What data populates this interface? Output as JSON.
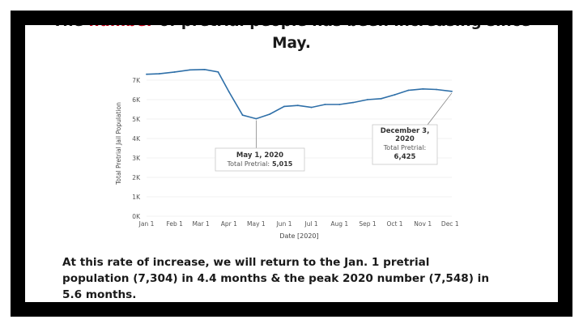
{
  "slide": {
    "title_part1": "The ",
    "title_highlight": "number",
    "title_part2": " of pretrial people has been increasing since",
    "title_line2": "May.",
    "caption_lines": [
      "At this rate of increase, we will return to the Jan. 1 pretrial",
      "population (7,304) in 4.4 months & the peak 2020 number (7,548) in",
      "5.6 months."
    ]
  },
  "colors": {
    "line": "#2e6fa8",
    "highlight": "#d0021b",
    "text": "#1a1a1a",
    "axis_text": "#555555",
    "grid": "#e6e6e6",
    "tooltip_border": "#c8c8c8"
  },
  "chart_data": {
    "type": "line",
    "xlabel": "Date [2020]",
    "ylabel": "Total Pretrial Jail Population",
    "ylim": [
      0,
      7500
    ],
    "yticks": [
      0,
      1000,
      2000,
      3000,
      4000,
      5000,
      6000,
      7000
    ],
    "ytick_labels": [
      "0K",
      "1K",
      "2K",
      "3K",
      "4K",
      "5K",
      "6K",
      "7K"
    ],
    "x_tick_dates": [
      "2020-01-01",
      "2020-02-01",
      "2020-03-01",
      "2020-04-01",
      "2020-05-01",
      "2020-06-01",
      "2020-07-01",
      "2020-08-01",
      "2020-09-01",
      "2020-10-01",
      "2020-11-01",
      "2020-12-01"
    ],
    "x_tick_labels": [
      "Jan 1",
      "Feb 1",
      "Mar 1",
      "Apr 1",
      "May 1",
      "Jun 1",
      "Jul 1",
      "Aug 1",
      "Sep 1",
      "Oct 1",
      "Nov 1",
      "Dec 1"
    ],
    "x_range": [
      "2020-01-01",
      "2020-12-03"
    ],
    "grid": true,
    "series": [
      {
        "points": [
          [
            "2020-01-01",
            7304
          ],
          [
            "2020-01-15",
            7330
          ],
          [
            "2020-02-01",
            7420
          ],
          [
            "2020-02-18",
            7530
          ],
          [
            "2020-03-05",
            7548
          ],
          [
            "2020-03-20",
            7420
          ],
          [
            "2020-04-01",
            6400
          ],
          [
            "2020-04-16",
            5200
          ],
          [
            "2020-05-01",
            5015
          ],
          [
            "2020-05-16",
            5250
          ],
          [
            "2020-06-01",
            5650
          ],
          [
            "2020-06-16",
            5700
          ],
          [
            "2020-07-01",
            5600
          ],
          [
            "2020-07-16",
            5750
          ],
          [
            "2020-08-01",
            5750
          ],
          [
            "2020-08-16",
            5850
          ],
          [
            "2020-09-01",
            6000
          ],
          [
            "2020-09-16",
            6050
          ],
          [
            "2020-10-01",
            6250
          ],
          [
            "2020-10-16",
            6480
          ],
          [
            "2020-11-01",
            6550
          ],
          [
            "2020-11-16",
            6520
          ],
          [
            "2020-12-03",
            6425
          ]
        ]
      }
    ],
    "annotations": [
      {
        "date": "2020-05-01",
        "value": 5015,
        "title": "May 1, 2020",
        "value_label": "Total Pretrial:",
        "value_text": "5,015"
      },
      {
        "date": "2020-12-03",
        "value": 6425,
        "title_lines": [
          "December 3,",
          "2020"
        ],
        "value_label": "Total Pretrial:",
        "value_text": "6,425"
      }
    ]
  }
}
